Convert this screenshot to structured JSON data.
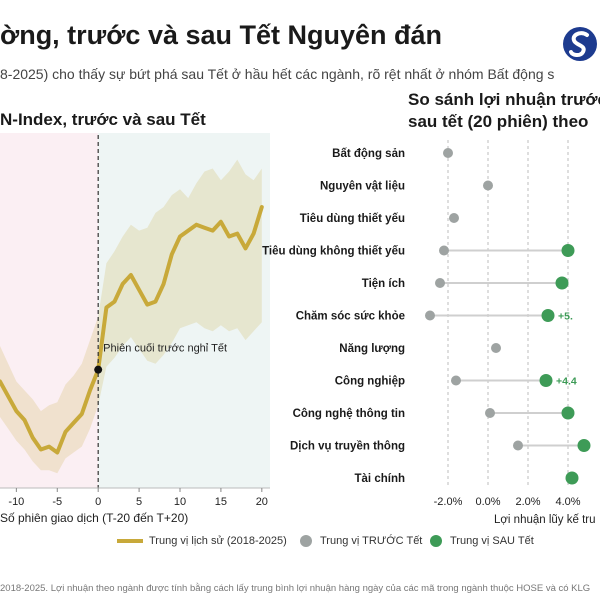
{
  "header": {
    "title": "ờng, trước và sau Tết Nguyên đán",
    "subtitle": "8-2025) cho thấy sự bứt phá sau Tết ở hầu hết các ngành, rõ rệt nhất ở nhóm Bất động s",
    "logo_icon": "brand-logo-icon"
  },
  "colors": {
    "gold": "#c8a93a",
    "grey_dot": "#9ea3a2",
    "green_dot": "#3e9b57",
    "pre_bg": "#fbeff3",
    "post_bg": "#eef5f4"
  },
  "left_chart": {
    "title": "N-Index, trước và sau Tết",
    "annotation": "Phiên cuối trước nghỉ Tết",
    "xlabel": "Số phiên giao dịch (T-20 đến T+20)"
  },
  "right_chart": {
    "title_line1": "So sánh lợi nhuận trước",
    "title_line2": "sau tết (20 phiên) theo",
    "xlabel": "Lợi nhuận lũy kế tru"
  },
  "legend": {
    "median": "Trung vị lịch sử (2018-2025)",
    "before": "Trung vị TRƯỚC Tết",
    "after": "Trung vị SAU Tết"
  },
  "footer": "2018-2025. Lợi nhuận theo ngành được tính bằng cách lấy trung bình lợi nhuận hàng ngày của các mã trong ngành thuộc HOSE và có KLG",
  "chart_data": [
    {
      "type": "line",
      "title": "N-Index, trước và sau Tết",
      "xlabel": "Số phiên giao dịch (T-20 đến T+20)",
      "xlim": [
        -12,
        21
      ],
      "ylim": [
        -5.6,
        6.4
      ],
      "xticks": [
        -10,
        -5,
        0,
        5,
        10,
        15,
        20
      ],
      "xtick_labels": [
        "-10",
        "-5",
        "0",
        "5",
        "10",
        "15",
        "20"
      ],
      "x": [
        -12,
        -11,
        -10,
        -9,
        -8,
        -7,
        -6,
        -5,
        -4,
        -3,
        -2,
        -1,
        0,
        1,
        2,
        3,
        4,
        5,
        6,
        7,
        8,
        9,
        10,
        11,
        12,
        13,
        14,
        15,
        16,
        17,
        18,
        19,
        20
      ],
      "median": [
        -2.0,
        -2.5,
        -3.0,
        -3.3,
        -3.9,
        -4.3,
        -4.2,
        -4.4,
        -3.7,
        -3.4,
        -3.1,
        -2.3,
        -1.6,
        0.5,
        0.7,
        1.3,
        1.6,
        1.1,
        0.6,
        0.7,
        1.3,
        2.3,
        2.9,
        3.1,
        3.3,
        3.2,
        3.1,
        3.4,
        2.9,
        3.0,
        2.5,
        3.0,
        3.9
      ],
      "band_upper": [
        -0.8,
        -1.4,
        -2.0,
        -2.3,
        -2.6,
        -3.0,
        -2.8,
        -2.7,
        -2.1,
        -1.8,
        -1.4,
        -0.6,
        0.2,
        2.0,
        2.4,
        2.9,
        3.3,
        3.1,
        3.2,
        3.7,
        3.9,
        4.3,
        4.5,
        4.2,
        4.7,
        5.1,
        5.2,
        4.8,
        5.1,
        5.5,
        5.0,
        4.8,
        5.2
      ],
      "band_lower": [
        -3.2,
        -3.6,
        -4.0,
        -4.3,
        -4.7,
        -5.0,
        -5.0,
        -5.1,
        -4.6,
        -4.4,
        -4.2,
        -3.6,
        -2.8,
        -1.5,
        -1.2,
        -0.8,
        -0.5,
        -0.9,
        -1.3,
        -1.4,
        -1.1,
        -0.7,
        -0.2,
        -0.1,
        0.0,
        -0.2,
        -0.3,
        -0.1,
        -0.3,
        -0.2,
        -0.6,
        -0.3,
        0.0
      ],
      "event_x": 0,
      "annotation": "Phiên cuối trước nghỉ Tết",
      "legend_entry": "Trung vị lịch sử (2018-2025)"
    },
    {
      "type": "scatter",
      "title": "So sánh lợi nhuận trước sau tết (20 phiên) theo",
      "xlabel": "Lợi nhuận lũy kế tru",
      "xlim": [
        -3.2,
        5.6
      ],
      "xticks": [
        -2,
        0,
        2,
        4
      ],
      "xtick_labels": [
        "-2.0%",
        "0.0%",
        "2.0%",
        "4.0%"
      ],
      "categories": [
        "Bất động sản",
        "Nguyên vật liệu",
        "Tiêu dùng thiết yếu",
        "Tiêu dùng không thiết yếu",
        "Tiện ích",
        "Chăm sóc sức khỏe",
        "Năng lượng",
        "Công nghiệp",
        "Công nghệ thông tin",
        "Dịch vụ truyền thông",
        "Tài chính"
      ],
      "series": [
        {
          "name": "Trung vị TRƯỚC Tết",
          "values": [
            -2.0,
            0.0,
            -1.7,
            -2.2,
            -2.4,
            -2.9,
            0.4,
            -1.6,
            0.1,
            1.5,
            null
          ]
        },
        {
          "name": "Trung vị SAU Tết",
          "values": [
            null,
            null,
            null,
            4.0,
            3.7,
            3.0,
            null,
            2.9,
            4.0,
            4.8,
            4.2
          ]
        }
      ],
      "data_labels": [
        "",
        "",
        "",
        "",
        "",
        "+5.",
        "",
        "+4.4",
        "",
        "",
        ""
      ]
    }
  ]
}
